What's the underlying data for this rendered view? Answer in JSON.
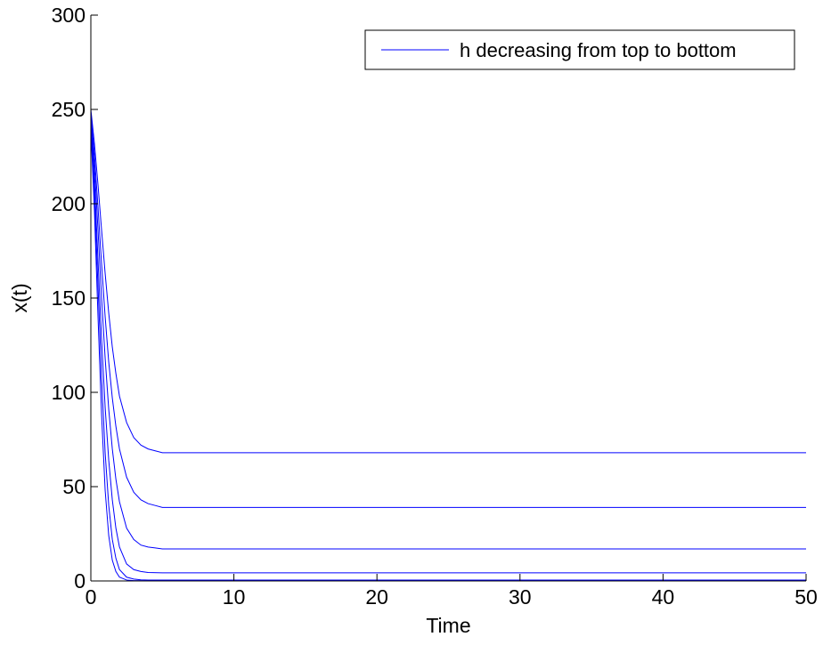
{
  "chart_data": {
    "type": "line",
    "title": "",
    "xlabel": "Time",
    "ylabel": "x(t)",
    "xlim": [
      0,
      50
    ],
    "ylim": [
      0,
      300
    ],
    "xticks": [
      0,
      10,
      20,
      30,
      40,
      50
    ],
    "yticks": [
      0,
      50,
      100,
      150,
      200,
      250,
      300
    ],
    "grid": false,
    "legend": {
      "placement": "top-right",
      "entries": [
        "h decreasing from top to bottom"
      ]
    },
    "colors": {
      "series": "#0000ff",
      "axes": "#000000",
      "background": "#ffffff"
    },
    "series": [
      {
        "x": [
          0,
          0.25,
          0.5,
          0.75,
          1,
          1.25,
          1.5,
          1.75,
          2,
          2.5,
          3,
          3.5,
          4,
          4.5,
          5,
          50
        ],
        "y": [
          250,
          232,
          210,
          186,
          163,
          142,
          124,
          110,
          98,
          84,
          76,
          72,
          70,
          69,
          68,
          68
        ]
      },
      {
        "x": [
          0,
          0.25,
          0.5,
          0.75,
          1,
          1.25,
          1.5,
          1.75,
          2,
          2.5,
          3,
          3.5,
          4,
          4.5,
          5,
          50
        ],
        "y": [
          248,
          226,
          198,
          168,
          140,
          116,
          97,
          82,
          70,
          55,
          47,
          43,
          41,
          40,
          39,
          39
        ]
      },
      {
        "x": [
          0,
          0.25,
          0.5,
          0.75,
          1,
          1.25,
          1.5,
          1.75,
          2,
          2.5,
          3,
          3.5,
          4,
          4.5,
          5,
          50
        ],
        "y": [
          246,
          220,
          186,
          150,
          118,
          91,
          70,
          54,
          42,
          28,
          22,
          19,
          18,
          17.5,
          17,
          17
        ]
      },
      {
        "x": [
          0,
          0.25,
          0.5,
          0.75,
          1,
          1.25,
          1.5,
          1.75,
          2,
          2.5,
          3,
          3.5,
          4,
          5,
          50
        ],
        "y": [
          244,
          212,
          170,
          128,
          92,
          64,
          43,
          28,
          18,
          9,
          6,
          5,
          4.5,
          4.3,
          4.3
        ]
      },
      {
        "x": [
          0,
          0.25,
          0.5,
          0.75,
          1,
          1.25,
          1.5,
          1.75,
          2,
          2.5,
          3,
          3.5,
          4,
          50
        ],
        "y": [
          242,
          204,
          156,
          108,
          68,
          40,
          22,
          12,
          6,
          2,
          1,
          0.6,
          0.5,
          0.5
        ]
      },
      {
        "x": [
          0,
          0.25,
          0.5,
          0.75,
          1,
          1.25,
          1.5,
          1.75,
          2,
          2.5,
          3,
          50
        ],
        "y": [
          240,
          196,
          140,
          88,
          48,
          24,
          11,
          5,
          2,
          0.5,
          0.2,
          0.2
        ]
      }
    ]
  }
}
